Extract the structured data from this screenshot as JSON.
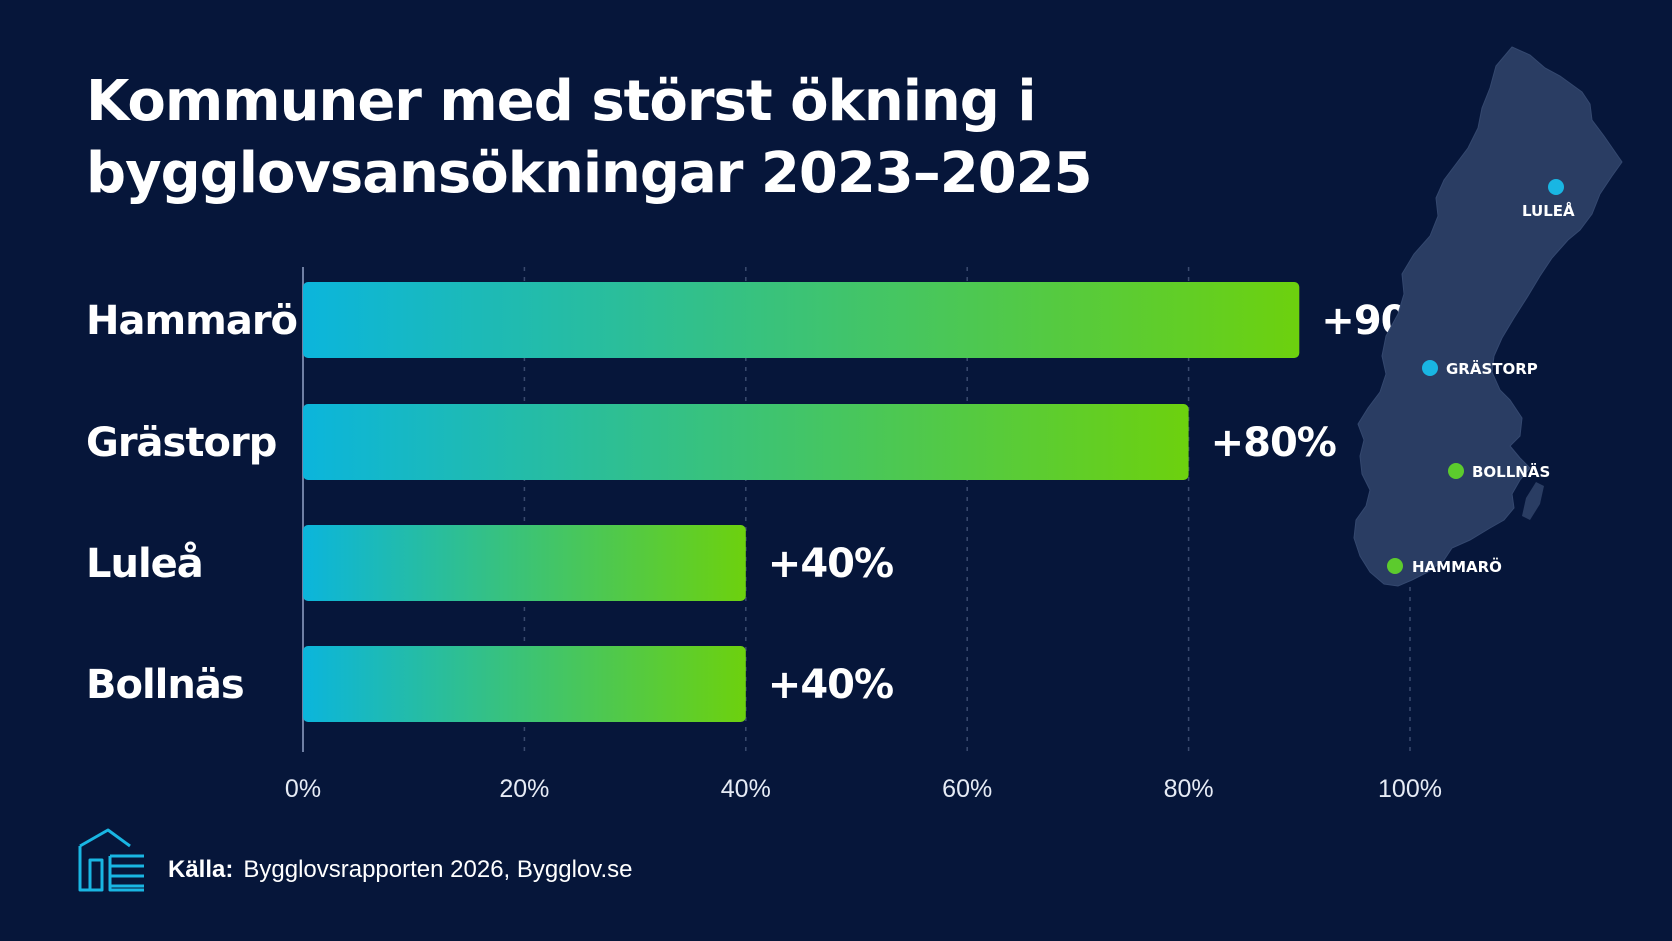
{
  "title_lines": [
    "Kommuner med störst ökning i",
    "bygglovsansökningar 2023–2025"
  ],
  "colors": {
    "background": "#06163a",
    "bar_gradient_start": "#0bb5dc",
    "bar_gradient_end": "#6dd10e",
    "map_fill": "#2a3d63",
    "marker_blue": "#19b6e3",
    "marker_green": "#5ccb2d"
  },
  "chart_data": {
    "type": "bar",
    "orientation": "horizontal",
    "categories": [
      "Hammarö",
      "Grästorp",
      "Luleå",
      "Bollnäs"
    ],
    "values": [
      90,
      80,
      40,
      40
    ],
    "value_labels": [
      "+90%",
      "+80%",
      "+40%",
      "+40%"
    ],
    "xlim": [
      0,
      100
    ],
    "xticks": [
      0,
      20,
      40,
      60,
      80,
      100
    ],
    "xtick_labels": [
      "0%",
      "20%",
      "40%",
      "60%",
      "80%",
      "100%"
    ],
    "grid": "vertical dashed",
    "xlabel": "",
    "ylabel": ""
  },
  "map": {
    "markers": [
      {
        "label": "LULEÅ",
        "color": "blue"
      },
      {
        "label": "GRÄSTORP",
        "color": "blue"
      },
      {
        "label": "BOLLNÄS",
        "color": "green"
      },
      {
        "label": "HAMMARÖ",
        "color": "green"
      }
    ]
  },
  "source": {
    "label": "Källa:",
    "text": "Bygglovsrapporten 2026, Bygglov.se"
  },
  "logo_icon": "house-document-icon"
}
